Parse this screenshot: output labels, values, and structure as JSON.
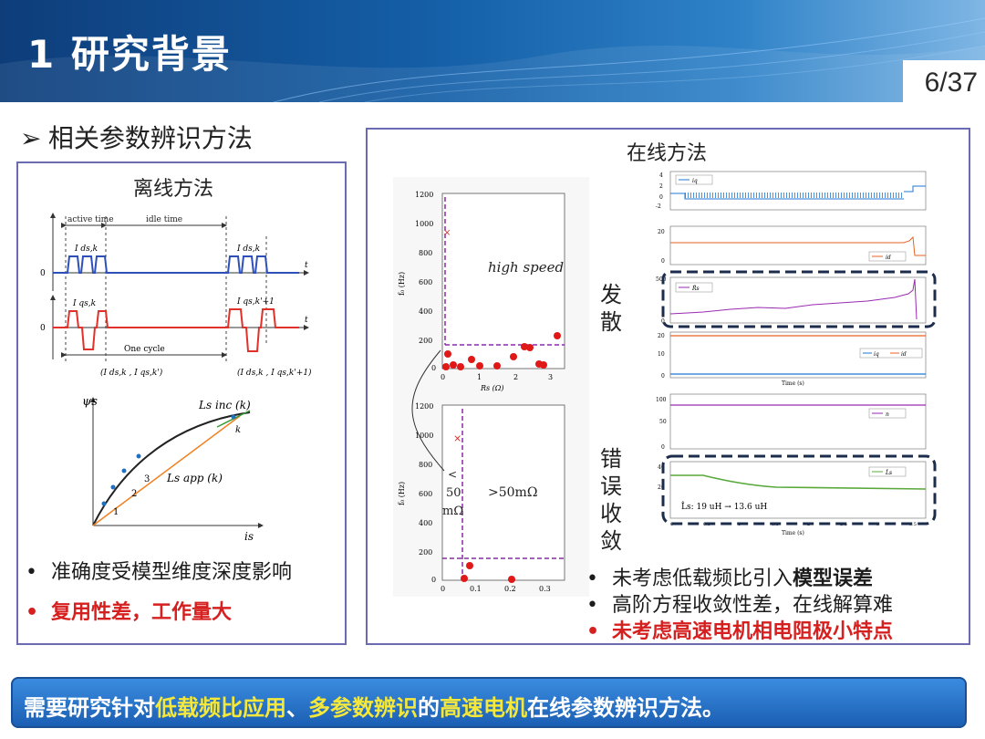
{
  "header": {
    "title": "1 研究背景",
    "page": "6/37"
  },
  "section_heading": "相关参数辨识方法",
  "offline": {
    "title": "离线方法",
    "timing": {
      "active_time": "active time",
      "idle_time": "idle time",
      "ids_k": "I ds,k",
      "ids_k2": "I ds,k",
      "iqs_k": "I qs,k",
      "iqs_k1": "I qs,k'+1",
      "zero1": "0",
      "zero2": "0",
      "t1": "t",
      "t2": "t",
      "one_cycle": "One cycle",
      "pair1": "(I ds,k , I qs,k')",
      "pair2": "(I ds,k , I qs,k'+1)"
    },
    "flux": {
      "psi": "ψs",
      "i_axis": "is",
      "inc": "Ls inc (k)",
      "app": "Ls app (k)",
      "k": "k",
      "n1": "1",
      "n2": "2",
      "n3": "3"
    },
    "notes": [
      {
        "text": "准确度受模型维度深度影响"
      },
      {
        "text": "复用性差，工作量大"
      }
    ]
  },
  "online": {
    "title": "在线方法",
    "label_divergence": "发散",
    "label_error_converge": "错误收敛",
    "scatter_top": {
      "y_ticks": [
        "1200",
        "1000",
        "800",
        "600",
        "400",
        "200",
        "0"
      ],
      "x_ticks": [
        "0",
        "1",
        "2",
        "3"
      ],
      "ylabel": "f₀ (Hz)",
      "xlabel": "Rs (Ω)",
      "annot": "high speed"
    },
    "scatter_bottom": {
      "y_ticks": [
        "1200",
        "1000",
        "800",
        "600",
        "400",
        "200",
        "0"
      ],
      "x_ticks": [
        "0",
        "0.1",
        "0.2",
        "0.3"
      ],
      "ylabel": "f₀ (Hz)",
      "xlabel": "Rs (Ω)",
      "annot_right": ">50mΩ",
      "annot_left1": "<",
      "annot_left2": "50",
      "annot_left3": "mΩ"
    },
    "timeseries": {
      "p1_ticks": [
        "4",
        "2",
        "0",
        "-2"
      ],
      "p1_legend": "iq",
      "p2_ticks": [
        "20",
        "0"
      ],
      "p2_legend": "id",
      "p3_ticks": [
        "500",
        "0"
      ],
      "p3_legend": "R̂s",
      "p4_ticks": [
        "20",
        "10",
        "0"
      ],
      "p4_legend1": "iq",
      "p4_legend2": "id",
      "time_label": "Time (s)",
      "p5_ticks": [
        "100",
        "50",
        "0"
      ],
      "p5_legend": "n",
      "p6_ticks": [
        "40",
        "20",
        "0"
      ],
      "p6_legend": "L̂s",
      "p6_annot": "L̂s: 19  uH → 13.6  uH",
      "p6_xticks": [
        "0",
        "0.5",
        "1",
        "1.5",
        "2",
        "2.5",
        "3",
        "3.5"
      ]
    },
    "notes": [
      {
        "pre": "未考虑低载频比引入",
        "bold": "模型误差"
      },
      {
        "text": "高阶方程收敛性差，在线解算难"
      },
      {
        "text": "未考虑高速电机相电阻极小特点"
      }
    ]
  },
  "bottom_banner": {
    "p1": "需要研究针对",
    "h1": "低载频比应用",
    "p2": "、",
    "h2": "多参数辨识",
    "p3": "的",
    "h3": "高速电机",
    "p4": "在线参数辨识方法。"
  },
  "colors": {
    "panel_border": "#6b6bb3",
    "accent_red": "#d62020",
    "banner_highlight": "#f5e83a",
    "header_blue": "#1560a8"
  }
}
